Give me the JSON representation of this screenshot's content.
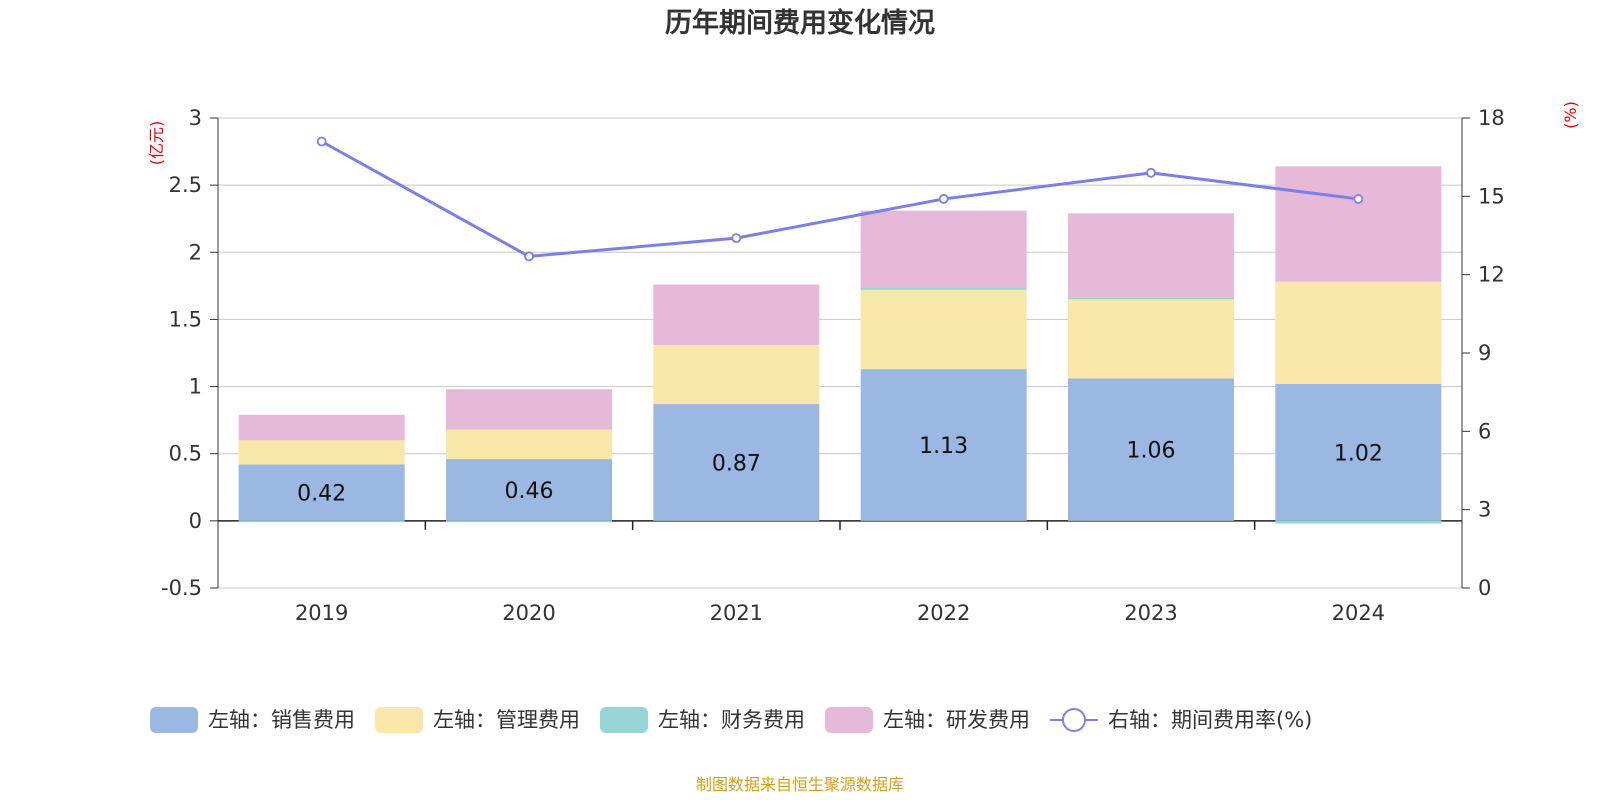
{
  "chart_data": {
    "type": "bar",
    "title": "历年期间费用变化情况",
    "categories": [
      "2019",
      "2020",
      "2021",
      "2022",
      "2023",
      "2024"
    ],
    "left_axis": {
      "unit": "(亿元)",
      "ylim": [
        -0.5,
        3
      ],
      "ticks": [
        "-0.5",
        "0",
        "0.5",
        "1",
        "1.5",
        "2",
        "2.5",
        "3"
      ]
    },
    "right_axis": {
      "unit": "(%)",
      "ylim": [
        0,
        18
      ],
      "ticks": [
        "0",
        "3",
        "6",
        "9",
        "12",
        "15",
        "18"
      ]
    },
    "series": [
      {
        "name": "左轴：销售费用",
        "type": "bar",
        "stack": true,
        "color": "#9bb8e2",
        "values": [
          0.42,
          0.46,
          0.87,
          1.13,
          1.06,
          1.02
        ],
        "data_labels": [
          "0.42",
          "0.46",
          "0.87",
          "1.13",
          "1.06",
          "1.02"
        ]
      },
      {
        "name": "左轴：管理费用",
        "type": "bar",
        "stack": true,
        "color": "#f8e7a8",
        "values": [
          0.18,
          0.22,
          0.44,
          0.59,
          0.59,
          0.76
        ]
      },
      {
        "name": "左轴：财务费用",
        "type": "bar",
        "stack": true,
        "color": "#97d4d6",
        "values": [
          -0.01,
          -0.01,
          0.0,
          0.02,
          0.01,
          -0.02
        ]
      },
      {
        "name": "左轴：研发费用",
        "type": "bar",
        "stack": true,
        "color": "#e6b9d9",
        "values": [
          0.19,
          0.3,
          0.45,
          0.57,
          0.63,
          0.86
        ]
      },
      {
        "name": "右轴：期间费用率(%)",
        "type": "line",
        "axis": "right",
        "color": "#7b7fe8",
        "values": [
          17.1,
          12.7,
          13.4,
          14.9,
          15.9,
          14.9
        ]
      }
    ],
    "grid": true,
    "legend_position": "bottom"
  },
  "source": "制图数据来自恒生聚源数据库"
}
